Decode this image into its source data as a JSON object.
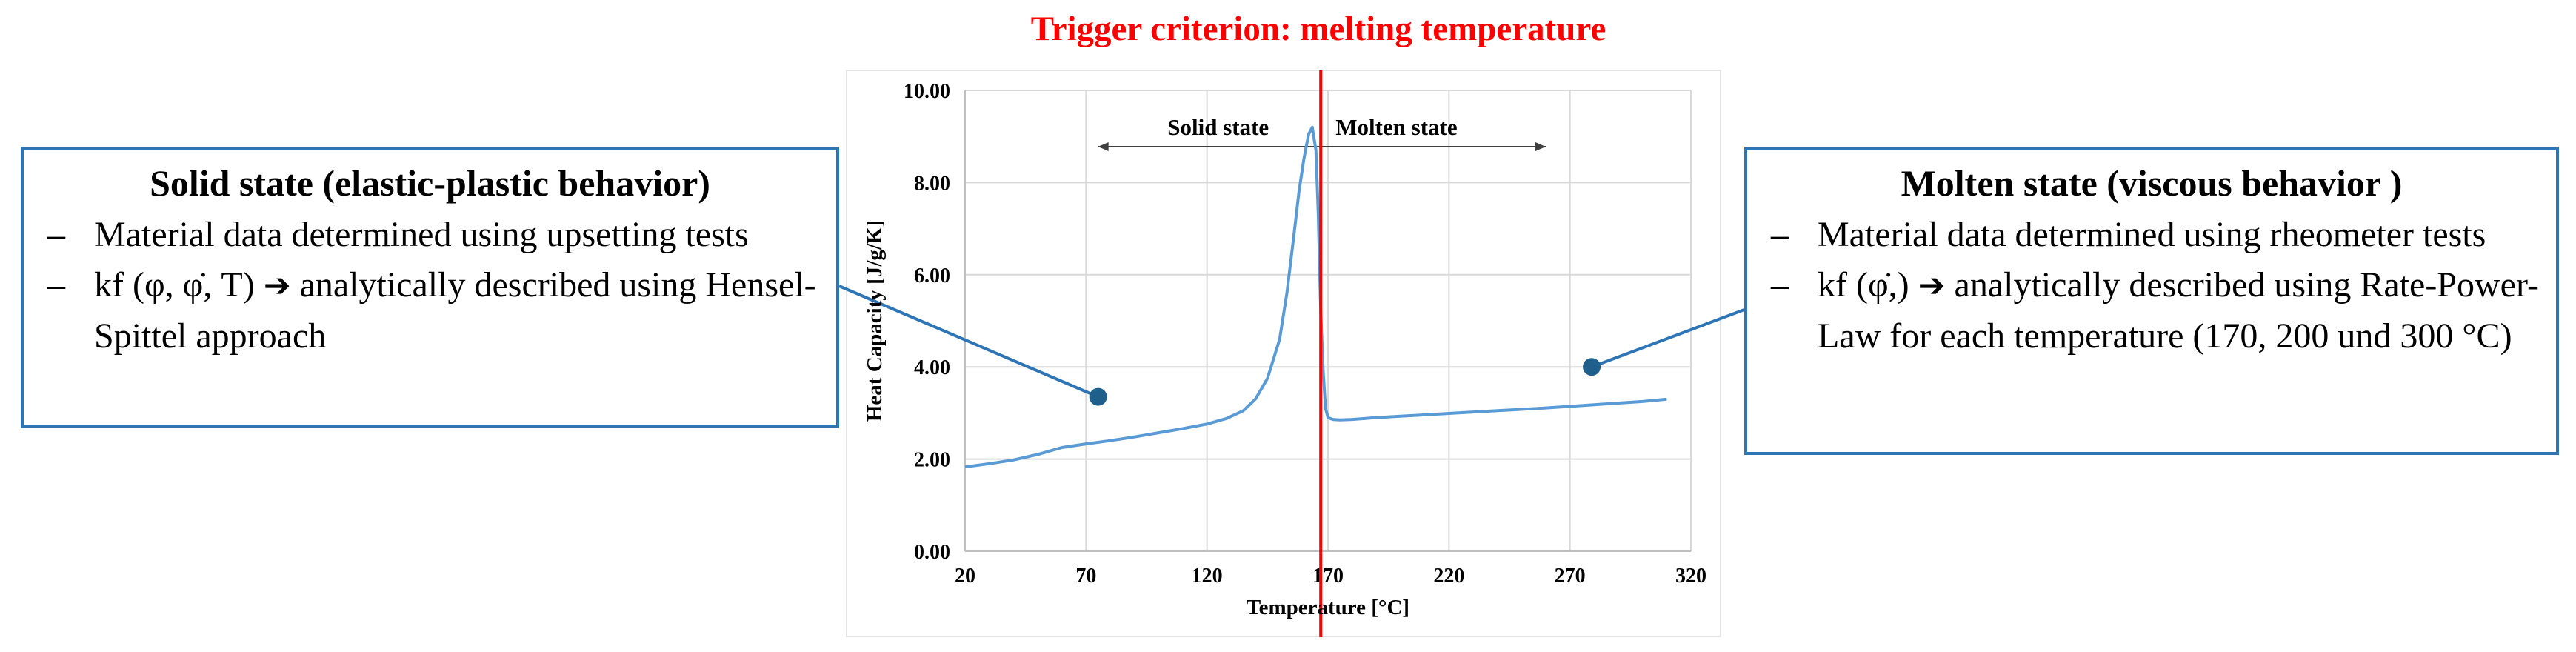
{
  "headline": "Trigger criterion: melting temperature",
  "left_box": {
    "title": "Solid state (elastic-plastic behavior)",
    "bullet_marker": "–",
    "bullet1": "Material data determined using upsetting tests",
    "bullet2_formula": "kf (φ, φ̇, T)",
    "bullet2_arrow": "➔",
    "bullet2_text": "analytically described using Hensel-Spittel approach"
  },
  "right_box": {
    "title": "Molten state (viscous behavior )",
    "bullet_marker": "–",
    "bullet1": "Material data determined using rheometer tests",
    "bullet2_formula": "kf (φ̇,)",
    "bullet2_arrow": "➔",
    "bullet2_text": "analytically described using Rate-Power-Law for each temperature (170, 200 und 300 °C)"
  },
  "colors": {
    "headline": "#ff0000",
    "trigger_line": "#ff0000",
    "series": "#5b9bd5",
    "callout_border": "#2e75b6",
    "marker": "#1f5f8b"
  },
  "chart_data": {
    "type": "line",
    "title": "",
    "xlabel": "Temperature [°C]",
    "ylabel": "Heat Capacity [J/g/K]",
    "xlim": [
      20,
      320
    ],
    "ylim": [
      0,
      10
    ],
    "xticks": [
      20,
      70,
      120,
      170,
      220,
      270,
      320
    ],
    "yticks": [
      "0.00",
      "2.00",
      "4.00",
      "6.00",
      "8.00",
      "10.00"
    ],
    "grid": true,
    "trigger_temperature": 167,
    "annotations": [
      {
        "text": "Solid state",
        "from_x": 75,
        "to_x": 167
      },
      {
        "text": "Molten state",
        "from_x": 167,
        "to_x": 260
      }
    ],
    "callout_points": [
      {
        "label": "solid",
        "x": 75,
        "y": 3.35
      },
      {
        "label": "molten",
        "x": 279,
        "y": 4.0
      }
    ],
    "series": [
      {
        "name": "Heat Capacity",
        "x": [
          20,
          30,
          40,
          50,
          60,
          70,
          80,
          90,
          100,
          110,
          120,
          128,
          135,
          140,
          145,
          150,
          153,
          156,
          158,
          160,
          162,
          163.5,
          165,
          166,
          167,
          168,
          169,
          170,
          172,
          175,
          180,
          190,
          200,
          220,
          240,
          260,
          280,
          300,
          310
        ],
        "y": [
          1.83,
          1.9,
          1.98,
          2.1,
          2.25,
          2.33,
          2.4,
          2.48,
          2.57,
          2.66,
          2.76,
          2.88,
          3.05,
          3.3,
          3.75,
          4.6,
          5.6,
          6.9,
          7.8,
          8.5,
          9.05,
          9.2,
          8.7,
          7.3,
          5.2,
          3.9,
          3.1,
          2.9,
          2.86,
          2.85,
          2.86,
          2.9,
          2.93,
          2.99,
          3.05,
          3.11,
          3.18,
          3.25,
          3.3
        ]
      }
    ]
  }
}
